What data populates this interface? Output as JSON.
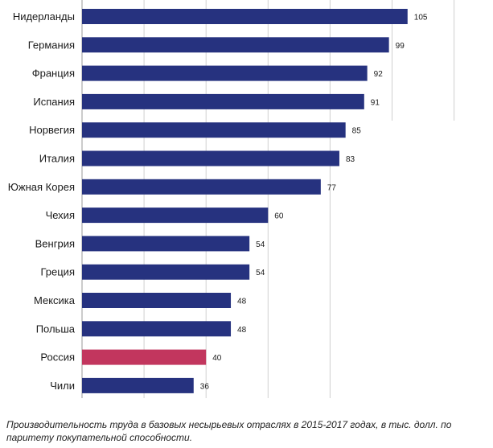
{
  "chart_data": {
    "type": "bar",
    "orientation": "horizontal",
    "categories": [
      "Нидерланды",
      "Германия",
      "Франция",
      "Испания",
      "Норвегия",
      "Италия",
      "Южная Корея",
      "Чехия",
      "Венгрия",
      "Греция",
      "Мексика",
      "Польша",
      "Россия",
      "Чили"
    ],
    "values": [
      105,
      99,
      92,
      91,
      85,
      83,
      77,
      60,
      54,
      54,
      48,
      48,
      40,
      36
    ],
    "value_labels": [
      "105",
      "99",
      "92",
      "91",
      "85",
      "83",
      "77",
      "60",
      "54",
      "54",
      "48",
      "48",
      "40",
      "36"
    ],
    "highlight_index": 12,
    "colors": {
      "bar": "#26327f",
      "highlight": "#c2365e",
      "grid": "#d0d0d0",
      "text": "#1a1a1a"
    },
    "xlim": [
      0,
      120
    ],
    "grid": true,
    "title": "",
    "xlabel": "",
    "ylabel": ""
  },
  "caption": "Производительность труда в базовых несырьевых отраслях в 2015-2017 годах, в тыс. долл. по паритету покупательной способности."
}
